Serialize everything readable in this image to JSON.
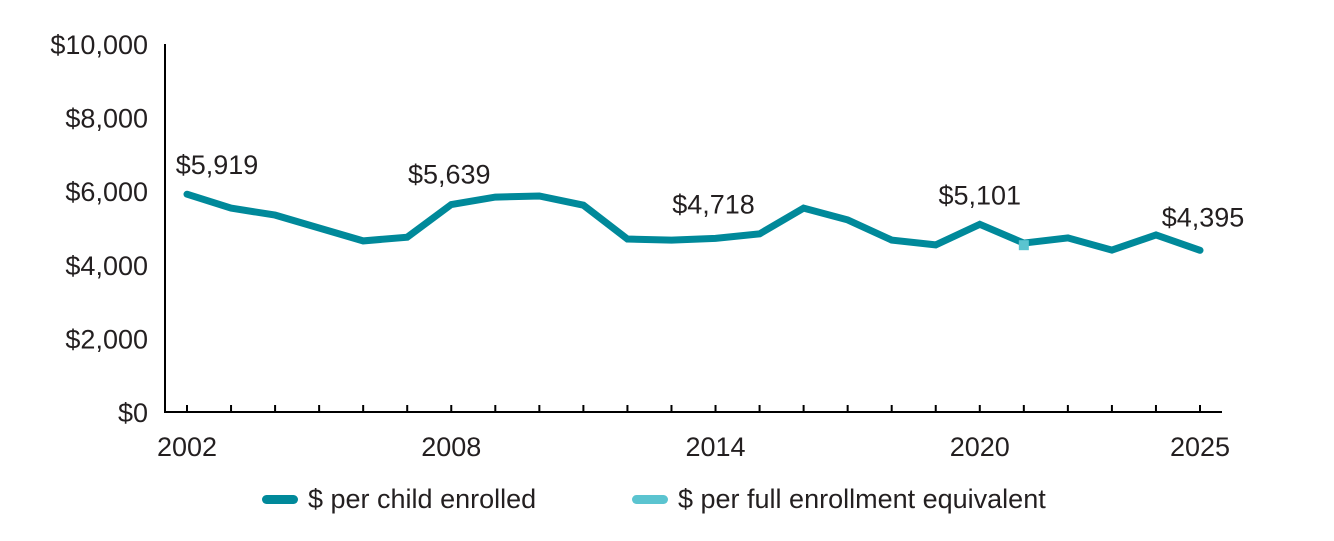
{
  "chart_data": {
    "type": "line",
    "title": "",
    "xlabel": "",
    "ylabel": "",
    "ylim": [
      0,
      10000
    ],
    "xlim": [
      2002,
      2025
    ],
    "grid": false,
    "y_ticks": [
      0,
      2000,
      4000,
      6000,
      8000,
      10000
    ],
    "y_tick_labels": [
      "$0",
      "$2,000",
      "$4,000",
      "$6,000",
      "$8,000",
      "$10,000"
    ],
    "x_ticks": [
      2002,
      2003,
      2004,
      2005,
      2006,
      2007,
      2008,
      2009,
      2010,
      2011,
      2012,
      2013,
      2014,
      2015,
      2016,
      2017,
      2018,
      2019,
      2020,
      2021,
      2022,
      2023,
      2024,
      2025
    ],
    "x_tick_labels": [
      {
        "year": 2002,
        "label": "2002"
      },
      {
        "year": 2008,
        "label": "2008"
      },
      {
        "year": 2014,
        "label": "2014"
      },
      {
        "year": 2020,
        "label": "2020"
      },
      {
        "year": 2025,
        "label": "2025"
      }
    ],
    "series": [
      {
        "name": "$ per child enrolled",
        "color": "#00899a",
        "x": [
          2002,
          2003,
          2004,
          2005,
          2006,
          2007,
          2008,
          2009,
          2010,
          2011,
          2012,
          2013,
          2014,
          2015,
          2016,
          2017,
          2018,
          2019,
          2020,
          2021,
          2022,
          2023,
          2024,
          2025
        ],
        "values": [
          5919,
          5540,
          5350,
          5000,
          4650,
          4750,
          5639,
          5840,
          5870,
          5620,
          4700,
          4670,
          4718,
          4840,
          5540,
          5220,
          4670,
          4540,
          5101,
          4590,
          4730,
          4400,
          4810,
          4395
        ]
      },
      {
        "name": "$ per full enrollment equivalent",
        "color": "#5bc4d0",
        "x": [
          2021
        ],
        "values": [
          4560
        ]
      }
    ],
    "annotations": [
      {
        "year": 2002,
        "value": 5919,
        "text": "$5,919"
      },
      {
        "year": 2008,
        "value": 5639,
        "text": "$5,639"
      },
      {
        "year": 2014,
        "value": 4718,
        "text": "$4,718"
      },
      {
        "year": 2020,
        "value": 5101,
        "text": "$5,101"
      },
      {
        "year": 2025,
        "value": 4395,
        "text": "$4,395"
      }
    ],
    "legend_position": "bottom"
  }
}
